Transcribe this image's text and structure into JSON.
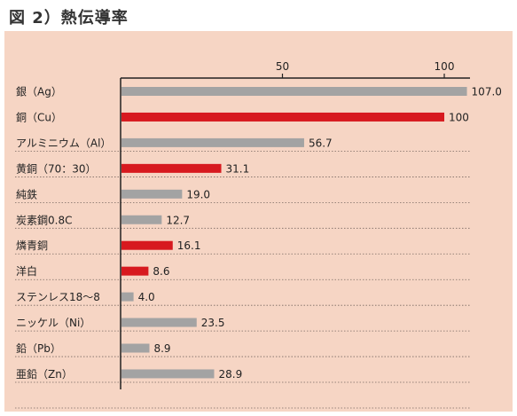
{
  "figure_title": "図 2）熱伝導率",
  "colors": {
    "background": "#f6d5c4",
    "bar_gray": "#a3a3a3",
    "bar_red": "#d7191f",
    "axis": "#222222"
  },
  "chart_data": {
    "type": "bar",
    "orientation": "horizontal",
    "title": "",
    "xlabel": "",
    "ylabel": "",
    "xlim": [
      0,
      110
    ],
    "x_ticks": [
      50,
      100
    ],
    "x_tick_labels": [
      "50",
      "100"
    ],
    "x_axis_position": "top",
    "grid": false,
    "categories": [
      "銀（Ag）",
      "銅（Cu）",
      "アルミニウム（Al）",
      "黄銅（70：30）",
      "純鉄",
      "炭素鋼0.8C",
      "燐青銅",
      "洋白",
      "ステンレス18～8",
      "ニッケル（Ni）",
      "鉛（Pb）",
      "亜鉛（Zn）"
    ],
    "values": [
      107.0,
      100,
      56.7,
      31.1,
      19.0,
      12.7,
      16.1,
      8.6,
      4.0,
      23.5,
      8.9,
      28.9
    ],
    "value_labels": [
      "107.0",
      "100",
      "56.7",
      "31.1",
      "19.0",
      "12.7",
      "16.1",
      "8.6",
      "4.0",
      "23.5",
      "8.9",
      "28.9"
    ],
    "bar_colors": [
      "gray",
      "red",
      "gray",
      "red",
      "gray",
      "gray",
      "red",
      "red",
      "gray",
      "gray",
      "gray",
      "gray"
    ]
  }
}
